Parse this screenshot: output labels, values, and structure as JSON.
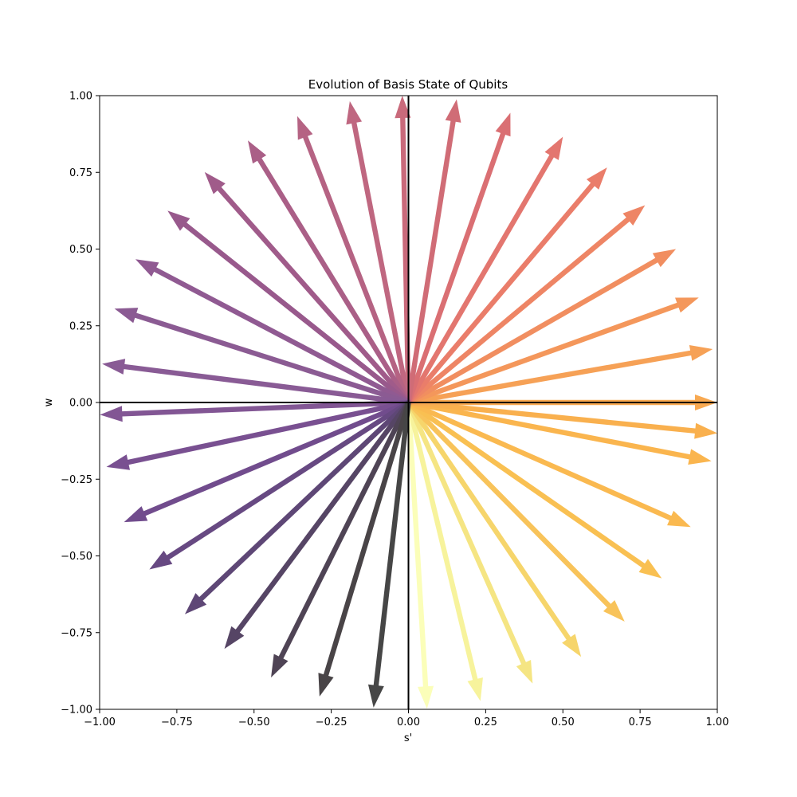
{
  "chart_data": {
    "type": "quiver",
    "title": "Evolution of Basis State of Qubits",
    "xlabel": "s'",
    "ylabel": "w",
    "xlim": [
      -1.0,
      1.0
    ],
    "ylim": [
      -1.0,
      1.0
    ],
    "xticks": [
      "−1.00",
      "−0.75",
      "−0.50",
      "−0.25",
      "0.00",
      "0.25",
      "0.50",
      "0.75",
      "1.00"
    ],
    "yticks": [
      "−1.00",
      "−0.75",
      "−0.50",
      "−0.25",
      "0.00",
      "0.25",
      "0.50",
      "0.75",
      "1.00"
    ],
    "grid": false,
    "origin": [
      0,
      0
    ],
    "vector_count": 36,
    "angle_step_deg": 10,
    "first_vector_angle_deg": -86.6,
    "colormap": "inferno (reversed, from dark grey to pale yellow)",
    "vectors": [
      {
        "u": 0.06,
        "v": -0.998
      },
      {
        "u": 0.233,
        "v": -0.973
      },
      {
        "u": 0.402,
        "v": -0.916
      },
      {
        "u": 0.559,
        "v": -0.829
      },
      {
        "u": 0.7,
        "v": -0.714
      },
      {
        "u": 0.82,
        "v": -0.573
      },
      {
        "u": 0.914,
        "v": -0.406
      },
      {
        "u": 0.981,
        "v": -0.191
      },
      {
        "u": 1.0,
        "v": -0.1
      },
      {
        "u": 1.0,
        "v": 0.0
      },
      {
        "u": 0.985,
        "v": 0.174
      },
      {
        "u": 0.94,
        "v": 0.342
      },
      {
        "u": 0.866,
        "v": 0.5
      },
      {
        "u": 0.766,
        "v": 0.643
      },
      {
        "u": 0.643,
        "v": 0.766
      },
      {
        "u": 0.5,
        "v": 0.866
      },
      {
        "u": 0.33,
        "v": 0.944
      },
      {
        "u": 0.156,
        "v": 0.988
      },
      {
        "u": -0.02,
        "v": 1.0
      },
      {
        "u": -0.19,
        "v": 0.982
      },
      {
        "u": -0.36,
        "v": 0.933
      },
      {
        "u": -0.52,
        "v": 0.854
      },
      {
        "u": -0.66,
        "v": 0.751
      },
      {
        "u": -0.78,
        "v": 0.625
      },
      {
        "u": -0.884,
        "v": 0.467
      },
      {
        "u": -0.952,
        "v": 0.306
      },
      {
        "u": -0.992,
        "v": 0.126
      },
      {
        "u": -0.999,
        "v": -0.04
      },
      {
        "u": -0.978,
        "v": -0.21
      },
      {
        "u": -0.921,
        "v": -0.39
      },
      {
        "u": -0.839,
        "v": -0.544
      },
      {
        "u": -0.724,
        "v": -0.69
      },
      {
        "u": -0.596,
        "v": -0.803
      },
      {
        "u": -0.445,
        "v": -0.896
      },
      {
        "u": -0.288,
        "v": -0.958
      },
      {
        "u": -0.113,
        "v": -0.994
      }
    ],
    "vector_colors": [
      "#fbfeb9",
      "#f7f39c",
      "#f5e583",
      "#f6d56b",
      "#f8c35a",
      "#f9c052",
      "#fab950",
      "#fab54e",
      "#f9b04e",
      "#f8a951",
      "#f6a156",
      "#f4975b",
      "#f18e60",
      "#ee8565",
      "#ea7d6a",
      "#e3766f",
      "#da6f73",
      "#d06c76",
      "#c96a7b",
      "#bf6780",
      "#b56383",
      "#aa5f87",
      "#a05b8a",
      "#98598c",
      "#905a92",
      "#8b5b93",
      "#895b95",
      "#825694",
      "#795091",
      "#714c8d",
      "#674982",
      "#5e4776",
      "#564565",
      "#4f4455",
      "#494447",
      "#464646"
    ]
  }
}
